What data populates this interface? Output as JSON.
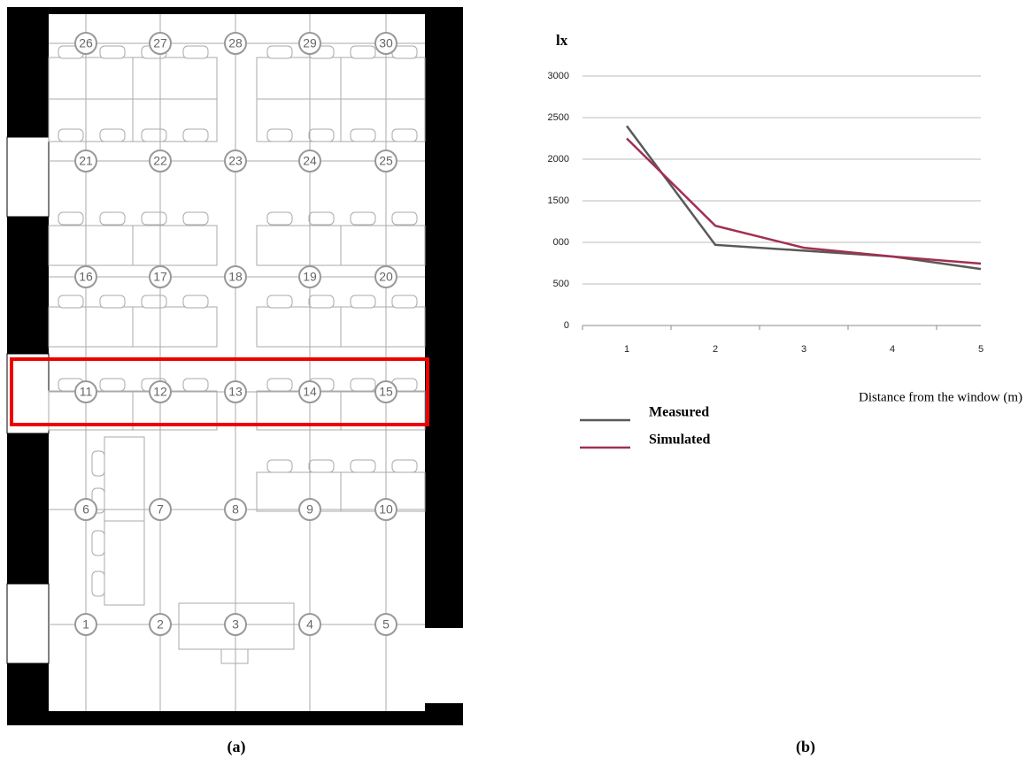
{
  "floor_plan": {
    "points": [
      "1",
      "2",
      "3",
      "4",
      "5",
      "6",
      "7",
      "8",
      "9",
      "10",
      "11",
      "12",
      "13",
      "14",
      "15",
      "16",
      "17",
      "18",
      "19",
      "20",
      "21",
      "22",
      "23",
      "24",
      "25",
      "26",
      "27",
      "28",
      "29",
      "30"
    ],
    "caption": "(a)"
  },
  "chart_data": {
    "type": "line",
    "caption": "(b)",
    "y_label": "lx",
    "x_label": "Distance from the window (m)",
    "categories": [
      "1",
      "2",
      "3",
      "4",
      "5"
    ],
    "series": [
      {
        "name": "Measured",
        "color": "#595959",
        "values": [
          2400,
          970,
          900,
          830,
          680
        ]
      },
      {
        "name": "Simulated",
        "color": "#a0304f",
        "values": [
          2250,
          1200,
          935,
          830,
          745
        ]
      }
    ],
    "ylim": [
      0,
      3000
    ],
    "yticks": [
      0,
      500,
      {
        "value": 1000,
        "label": "000"
      },
      1500,
      2000,
      2500,
      3000
    ],
    "grid": true
  }
}
